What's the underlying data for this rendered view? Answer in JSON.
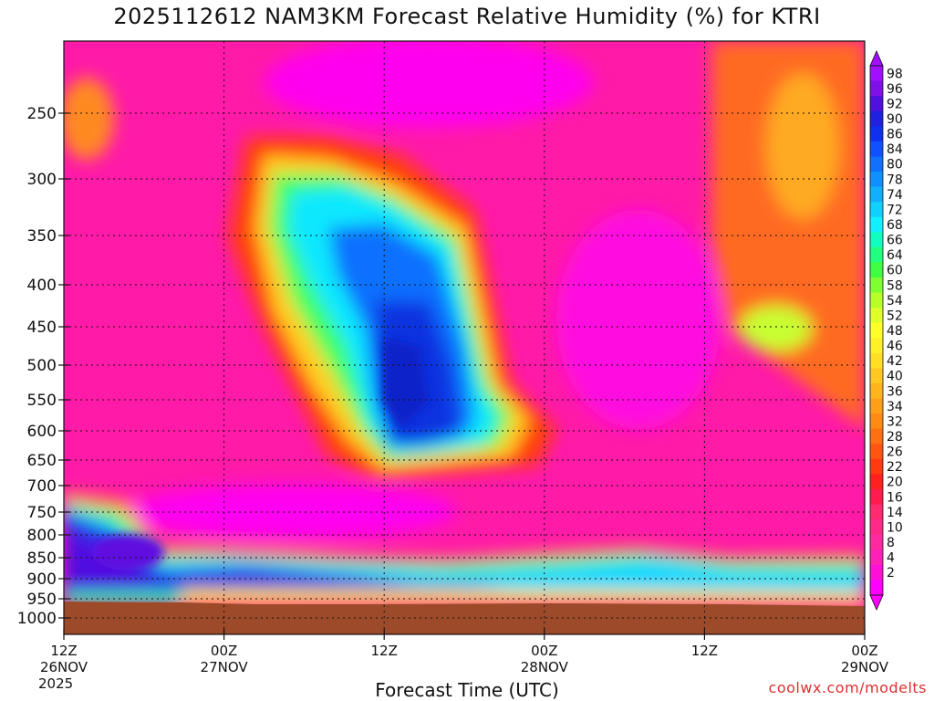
{
  "chart_data": {
    "type": "heatmap",
    "title": "2025112612 NAM3KM Forecast Relative Humidity (%) for KTRI",
    "xlabel": "Forecast Time (UTC)",
    "ylabel": "",
    "y_axis": "pressure (hPa), inverted",
    "y_ticks": [
      250,
      300,
      350,
      400,
      450,
      500,
      550,
      600,
      650,
      700,
      750,
      800,
      850,
      900,
      950,
      1000
    ],
    "x_ticks": [
      {
        "hour": 0,
        "line1": "12Z",
        "line2": "26NOV",
        "line3": "2025"
      },
      {
        "hour": 12,
        "line1": "00Z",
        "line2": "27NOV",
        "line3": ""
      },
      {
        "hour": 24,
        "line1": "12Z",
        "line2": "",
        "line3": ""
      },
      {
        "hour": 36,
        "line1": "00Z",
        "line2": "28NOV",
        "line3": ""
      },
      {
        "hour": 48,
        "line1": "12Z",
        "line2": "",
        "line3": ""
      },
      {
        "hour": 60,
        "line1": "00Z",
        "line2": "29NOV",
        "line3": ""
      }
    ],
    "x_range_hours": [
      0,
      60
    ],
    "grid": true,
    "colorbar": {
      "levels": [
        2,
        4,
        8,
        10,
        14,
        16,
        20,
        22,
        26,
        28,
        32,
        34,
        36,
        40,
        42,
        46,
        48,
        52,
        54,
        58,
        60,
        64,
        66,
        68,
        72,
        74,
        78,
        80,
        84,
        86,
        90,
        92,
        96,
        98
      ],
      "colors": [
        "#ff00ff",
        "#ff10d8",
        "#ff20b8",
        "#ff2aa0",
        "#ff2a88",
        "#ff2a70",
        "#ff1a50",
        "#ff2020",
        "#ff3a10",
        "#ff5510",
        "#ff7010",
        "#ff8a14",
        "#ff9f18",
        "#ffb41c",
        "#ffc820",
        "#ffde24",
        "#fff028",
        "#ffff28",
        "#e0ff28",
        "#b8ff28",
        "#80ff30",
        "#40ff40",
        "#20ff80",
        "#10ffc0",
        "#10f0ff",
        "#10d0ff",
        "#10b0ff",
        "#1090ff",
        "#1070ff",
        "#1050ff",
        "#1030f0",
        "#2020e0",
        "#5010e0",
        "#8010e8",
        "#a010ff"
      ]
    },
    "ground_color": "#9c4a2a",
    "regions": [
      {
        "desc": "dry background",
        "rh": 10
      },
      {
        "desc": "upper moist plume core",
        "rh": 82,
        "time_hours": [
          14,
          30
        ],
        "pressure": [
          300,
          690
        ]
      },
      {
        "desc": "low-level moist layer",
        "rh": 90,
        "time_hours": [
          0,
          22
        ],
        "pressure": [
          820,
          950
        ]
      },
      {
        "desc": "boundary layer moist band",
        "rh": 60,
        "time_hours": [
          14,
          60
        ],
        "pressure": [
          850,
          960
        ]
      },
      {
        "desc": "upper dry-moderate area right",
        "rh": 30,
        "time_hours": [
          48,
          60
        ],
        "pressure": [
          220,
          550
        ]
      }
    ]
  },
  "credit": "coolwx.com/modelts"
}
